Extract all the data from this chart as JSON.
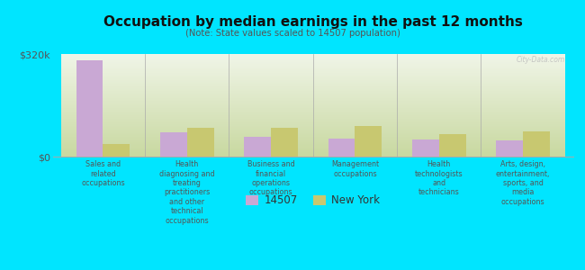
{
  "title": "Occupation by median earnings in the past 12 months",
  "subtitle": "(Note: State values scaled to 14507 population)",
  "background_color": "#00e5ff",
  "bar_color_14507": "#c9a8d4",
  "bar_color_ny": "#c8c870",
  "categories": [
    "Sales and\nrelated\noccupations",
    "Health\ndiagnosing and\ntreating\npractitioners\nand other\ntechnical\noccupations",
    "Business and\nfinancial\noperations\noccupations",
    "Management\noccupations",
    "Health\ntechnologists\nand\ntechnicians",
    "Arts, design,\nentertainment,\nsports, and\nmedia\noccupations"
  ],
  "values_14507": [
    300000,
    75000,
    62000,
    55000,
    52000,
    50000
  ],
  "values_ny": [
    38000,
    90000,
    90000,
    95000,
    70000,
    78000
  ],
  "ymax": 320000,
  "yticks": [
    0,
    320000
  ],
  "ytick_labels": [
    "$0",
    "$320k"
  ],
  "legend_14507": "14507",
  "legend_ny": "New York",
  "watermark": "City-Data.com",
  "plot_bg_bottom": "#c8d8a0",
  "plot_bg_top": "#f0f5e8"
}
